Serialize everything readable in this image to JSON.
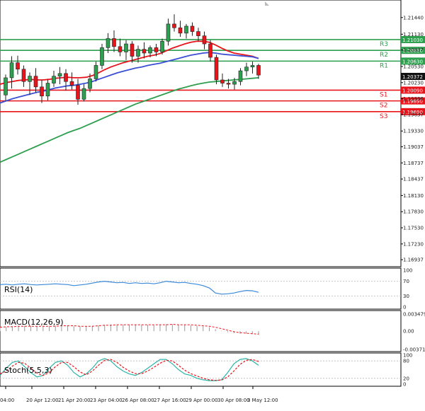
{
  "chart_data": [
    {
      "type": "candlestick",
      "title": "",
      "xlabel": "",
      "ylabel": "",
      "ylim": [
        1.1682,
        1.2174
      ],
      "y_ticks": [
        "1.21440",
        "1.21130",
        "1.20837",
        "1.20530",
        "1.20230",
        "1.19930",
        "1.19637",
        "1.19330",
        "1.19037",
        "1.18737",
        "1.18437",
        "1.18130",
        "1.17830",
        "1.17530",
        "1.17230",
        "1.16937"
      ],
      "x_labels": [
        "04:00",
        "20 Apr 12:00",
        "21 Apr 20:00",
        "23 Apr 04:00",
        "26 Apr 08:00",
        "27 Apr 16:00",
        "29 Apr 00:00",
        "30 Apr 08:00",
        "3 May 12:00"
      ],
      "current_price": "1.20372",
      "candles": [
        {
          "o": 1.2,
          "h": 1.2038,
          "l": 1.1989,
          "c": 1.2032
        },
        {
          "o": 1.2032,
          "h": 1.2072,
          "l": 1.2012,
          "c": 1.206
        },
        {
          "o": 1.206,
          "h": 1.2073,
          "l": 1.2038,
          "c": 1.2048
        },
        {
          "o": 1.2048,
          "h": 1.2055,
          "l": 1.2015,
          "c": 1.2025
        },
        {
          "o": 1.2025,
          "h": 1.2042,
          "l": 1.2,
          "c": 1.2035
        },
        {
          "o": 1.2035,
          "h": 1.205,
          "l": 1.2005,
          "c": 1.2015
        },
        {
          "o": 1.2015,
          "h": 1.2028,
          "l": 1.1985,
          "c": 1.1998
        },
        {
          "o": 1.1998,
          "h": 1.203,
          "l": 1.199,
          "c": 1.2022
        },
        {
          "o": 1.2022,
          "h": 1.2045,
          "l": 1.2015,
          "c": 1.2035
        },
        {
          "o": 1.2035,
          "h": 1.2052,
          "l": 1.202,
          "c": 1.204
        },
        {
          "o": 1.204,
          "h": 1.2048,
          "l": 1.2008,
          "c": 1.2025
        },
        {
          "o": 1.2025,
          "h": 1.2042,
          "l": 1.201,
          "c": 1.2018
        },
        {
          "o": 1.2018,
          "h": 1.203,
          "l": 1.1982,
          "c": 1.1992
        },
        {
          "o": 1.1992,
          "h": 1.202,
          "l": 1.1988,
          "c": 1.2012
        },
        {
          "o": 1.2012,
          "h": 1.204,
          "l": 1.2005,
          "c": 1.203
        },
        {
          "o": 1.203,
          "h": 1.2062,
          "l": 1.2025,
          "c": 1.2055
        },
        {
          "o": 1.2055,
          "h": 1.2095,
          "l": 1.2048,
          "c": 1.2088
        },
        {
          "o": 1.2088,
          "h": 1.2115,
          "l": 1.2078,
          "c": 1.2105
        },
        {
          "o": 1.2105,
          "h": 1.212,
          "l": 1.208,
          "c": 1.209
        },
        {
          "o": 1.209,
          "h": 1.2105,
          "l": 1.2072,
          "c": 1.208
        },
        {
          "o": 1.208,
          "h": 1.2102,
          "l": 1.2065,
          "c": 1.2095
        },
        {
          "o": 1.2095,
          "h": 1.21,
          "l": 1.206,
          "c": 1.2072
        },
        {
          "o": 1.2072,
          "h": 1.2092,
          "l": 1.206,
          "c": 1.2085
        },
        {
          "o": 1.2085,
          "h": 1.2098,
          "l": 1.2068,
          "c": 1.2078
        },
        {
          "o": 1.2078,
          "h": 1.2092,
          "l": 1.207,
          "c": 1.2088
        },
        {
          "o": 1.2088,
          "h": 1.2095,
          "l": 1.2072,
          "c": 1.208
        },
        {
          "o": 1.208,
          "h": 1.2105,
          "l": 1.2075,
          "c": 1.21
        },
        {
          "o": 1.21,
          "h": 1.2142,
          "l": 1.2092,
          "c": 1.2132
        },
        {
          "o": 1.2132,
          "h": 1.215,
          "l": 1.2118,
          "c": 1.2125
        },
        {
          "o": 1.2125,
          "h": 1.2138,
          "l": 1.2108,
          "c": 1.2115
        },
        {
          "o": 1.2115,
          "h": 1.2132,
          "l": 1.2105,
          "c": 1.2128
        },
        {
          "o": 1.2128,
          "h": 1.2135,
          "l": 1.211,
          "c": 1.2118
        },
        {
          "o": 1.2118,
          "h": 1.2125,
          "l": 1.21,
          "c": 1.211
        },
        {
          "o": 1.211,
          "h": 1.2118,
          "l": 1.2085,
          "c": 1.2095
        },
        {
          "o": 1.2095,
          "h": 1.2102,
          "l": 1.2062,
          "c": 1.207
        },
        {
          "o": 1.207,
          "h": 1.2075,
          "l": 1.202,
          "c": 1.2028
        },
        {
          "o": 1.2028,
          "h": 1.204,
          "l": 1.2015,
          "c": 1.2022
        },
        {
          "o": 1.2022,
          "h": 1.203,
          "l": 1.2012,
          "c": 1.202
        },
        {
          "o": 1.202,
          "h": 1.2032,
          "l": 1.201,
          "c": 1.2025
        },
        {
          "o": 1.2025,
          "h": 1.205,
          "l": 1.2018,
          "c": 1.2045
        },
        {
          "o": 1.2045,
          "h": 1.206,
          "l": 1.2035,
          "c": 1.2052
        },
        {
          "o": 1.2052,
          "h": 1.2062,
          "l": 1.204,
          "c": 1.2055
        },
        {
          "o": 1.2055,
          "h": 1.2058,
          "l": 1.203,
          "c": 1.2037
        }
      ],
      "moving_averages": [
        {
          "color": "#e8141c",
          "values": [
            1.202,
            1.2023,
            1.2025,
            1.2027,
            1.2028,
            1.2029,
            1.2028,
            1.2028,
            1.2029,
            1.2031,
            1.2032,
            1.2033,
            1.2032,
            1.2032,
            1.2033,
            1.2036,
            1.2041,
            1.2047,
            1.2052,
            1.2056,
            1.206,
            1.2063,
            1.2066,
            1.2069,
            1.2072,
            1.2074,
            1.2077,
            1.2082,
            1.2087,
            1.2091,
            1.2095,
            1.2098,
            1.21,
            1.21,
            1.2098,
            1.2093,
            1.2087,
            1.2082,
            1.2078,
            1.2076,
            1.2074,
            1.2072,
            1.2068
          ]
        },
        {
          "color": "#3b4fd6",
          "values": [
            1.1985,
            1.1989,
            1.1993,
            1.1996,
            1.1999,
            1.2002,
            1.2005,
            1.2007,
            1.201,
            1.2013,
            1.2015,
            1.2017,
            1.2018,
            1.202,
            1.2022,
            1.2025,
            1.2029,
            1.2033,
            1.2037,
            1.2041,
            1.2044,
            1.2047,
            1.205,
            1.2052,
            1.2055,
            1.2057,
            1.2059,
            1.2062,
            1.2065,
            1.2068,
            1.2071,
            1.2074,
            1.2076,
            1.2078,
            1.2079,
            1.2078,
            1.2076,
            1.2075,
            1.2074,
            1.2073,
            1.2072,
            1.2071,
            1.2068
          ]
        },
        {
          "color": "#2e9e4f",
          "values": [
            1.1875,
            1.188,
            1.1885,
            1.189,
            1.1895,
            1.19,
            1.1905,
            1.191,
            1.1915,
            1.192,
            1.1925,
            1.193,
            1.1934,
            1.1938,
            1.1943,
            1.1948,
            1.1953,
            1.1958,
            1.1963,
            1.1968,
            1.1973,
            1.1978,
            1.1983,
            1.1987,
            1.1991,
            1.1995,
            1.1999,
            1.2003,
            1.2007,
            1.2011,
            1.2014,
            1.2017,
            1.202,
            1.2022,
            1.2024,
            1.2025,
            1.2026,
            1.2027,
            1.2028,
            1.2029,
            1.203,
            1.2031,
            1.2032
          ]
        }
      ],
      "levels": [
        {
          "label": "R3",
          "value": 1.2103,
          "text": "1.21030",
          "color": "#2e9e4f"
        },
        {
          "label": "R2",
          "value": 1.2083,
          "text": "1.20830",
          "color": "#2e9e4f"
        },
        {
          "label": "R1",
          "value": 1.2063,
          "text": "1.20630",
          "color": "#2e9e4f"
        },
        {
          "label": "S1",
          "value": 1.2009,
          "text": "1.20090",
          "color": "#e8141c"
        },
        {
          "label": "S2",
          "value": 1.1989,
          "text": "1.19890",
          "color": "#e8141c"
        },
        {
          "label": "S3",
          "value": 1.1969,
          "text": "1.19690",
          "color": "#e8141c"
        }
      ]
    },
    {
      "type": "line",
      "title": "RSI(14)",
      "ylim": [
        0,
        100
      ],
      "y_ticks": [
        "100",
        "70",
        "30",
        "0"
      ],
      "series": [
        {
          "color": "#3a88d8",
          "values": [
            61,
            62,
            60,
            62,
            63,
            61,
            60,
            61,
            62,
            63,
            62,
            61,
            58,
            60,
            62,
            65,
            68,
            70,
            68,
            66,
            67,
            64,
            66,
            64,
            65,
            63,
            66,
            70,
            68,
            66,
            67,
            64,
            62,
            58,
            52,
            38,
            35,
            36,
            38,
            42,
            45,
            44,
            40
          ]
        }
      ]
    },
    {
      "type": "bar",
      "title": "MACD(12,26,9)",
      "ylim": [
        -0.003714,
        0.003479
      ],
      "y_ticks": [
        "0.003479",
        "0.00",
        "-0.003714"
      ],
      "values": [
        0.0008,
        0.0009,
        0.001,
        0.001,
        0.0011,
        0.0011,
        0.001,
        0.001,
        0.001,
        0.0011,
        0.0011,
        0.0011,
        0.001,
        0.001,
        0.001,
        0.0011,
        0.0012,
        0.0013,
        0.0013,
        0.0013,
        0.0013,
        0.0013,
        0.0013,
        0.0013,
        0.0013,
        0.0012,
        0.0013,
        0.0014,
        0.0014,
        0.0013,
        0.0013,
        0.0012,
        0.0011,
        0.001,
        0.0008,
        0.0004,
        0.0001,
        -0.0002,
        -0.0004,
        -0.0005,
        -0.0005,
        -0.0006,
        -0.0007
      ],
      "signal": [
        0.0008,
        0.0009,
        0.0009,
        0.001,
        0.001,
        0.001,
        0.001,
        0.001,
        0.001,
        0.001,
        0.0011,
        0.0011,
        0.0011,
        0.001,
        0.001,
        0.001,
        0.0011,
        0.0012,
        0.0012,
        0.0013,
        0.0013,
        0.0013,
        0.0013,
        0.0013,
        0.0013,
        0.0013,
        0.0013,
        0.0013,
        0.0014,
        0.0013,
        0.0013,
        0.0013,
        0.0012,
        0.0011,
        0.001,
        0.0008,
        0.0005,
        0.0002,
        -0.0001,
        -0.0003,
        -0.0004,
        -0.0005,
        -0.0006
      ]
    },
    {
      "type": "line",
      "title": "Stoch(5,5,3)",
      "ylim": [
        0,
        100
      ],
      "y_ticks": [
        "100",
        "80",
        "20",
        "0"
      ],
      "series": [
        {
          "color": "#2bb5a8",
          "values": [
            30,
            55,
            75,
            80,
            60,
            40,
            25,
            30,
            55,
            75,
            80,
            65,
            40,
            25,
            35,
            55,
            80,
            88,
            80,
            60,
            45,
            35,
            30,
            40,
            55,
            70,
            85,
            85,
            70,
            50,
            35,
            30,
            20,
            15,
            12,
            12,
            15,
            40,
            70,
            85,
            88,
            80,
            65
          ]
        },
        {
          "color": "#e8141c",
          "values": [
            35,
            45,
            62,
            75,
            72,
            55,
            38,
            30,
            40,
            60,
            75,
            75,
            60,
            42,
            32,
            45,
            65,
            82,
            85,
            75,
            58,
            45,
            36,
            36,
            45,
            58,
            72,
            82,
            80,
            65,
            48,
            36,
            28,
            20,
            15,
            13,
            14,
            25,
            45,
            68,
            82,
            85,
            78
          ]
        }
      ]
    }
  ]
}
